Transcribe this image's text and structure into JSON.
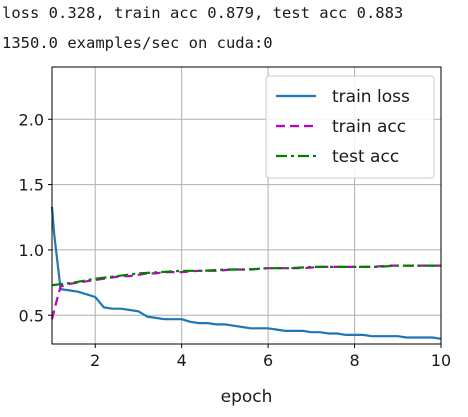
{
  "log": {
    "line1": "loss 0.328, train acc 0.879, test acc 0.883",
    "line2": "1350.0 examples/sec on cuda:0"
  },
  "chart_data": {
    "type": "line",
    "title": "",
    "xlabel": "epoch",
    "ylabel": "",
    "xlim": [
      1,
      10
    ],
    "ylim": [
      0.28,
      2.4
    ],
    "xticks": [
      2,
      4,
      6,
      8,
      10
    ],
    "yticks": [
      0.5,
      1.0,
      1.5,
      2.0
    ],
    "xtick_labels": [
      "2",
      "4",
      "6",
      "8",
      "10"
    ],
    "ytick_labels": [
      "0.5",
      "1.0",
      "1.5",
      "2.0"
    ],
    "grid": true,
    "legend_position": "top-right",
    "series": [
      {
        "name": "train loss",
        "color": "#1f77b4",
        "style": "solid",
        "x": [
          1.0,
          1.05,
          1.2,
          1.4,
          1.6,
          1.8,
          2.0,
          2.2,
          2.4,
          2.6,
          2.8,
          3.0,
          3.2,
          3.4,
          3.6,
          3.8,
          4.0,
          4.2,
          4.4,
          4.6,
          4.8,
          5.0,
          5.2,
          5.4,
          5.6,
          5.8,
          6.0,
          6.2,
          6.4,
          6.6,
          6.8,
          7.0,
          7.2,
          7.4,
          7.6,
          7.8,
          8.0,
          8.2,
          8.4,
          8.6,
          8.8,
          9.0,
          9.2,
          9.4,
          9.6,
          9.8,
          10.0
        ],
        "y": [
          1.33,
          1.12,
          0.7,
          0.69,
          0.68,
          0.66,
          0.64,
          0.56,
          0.55,
          0.55,
          0.54,
          0.53,
          0.49,
          0.48,
          0.47,
          0.47,
          0.47,
          0.45,
          0.44,
          0.44,
          0.43,
          0.43,
          0.42,
          0.41,
          0.4,
          0.4,
          0.4,
          0.39,
          0.38,
          0.38,
          0.38,
          0.37,
          0.37,
          0.36,
          0.36,
          0.35,
          0.35,
          0.35,
          0.34,
          0.34,
          0.34,
          0.34,
          0.33,
          0.33,
          0.33,
          0.33,
          0.32
        ]
      },
      {
        "name": "train acc",
        "color": "#bf00bf",
        "style": "dashed",
        "x": [
          1.0,
          1.1,
          1.2,
          1.4,
          1.6,
          1.8,
          2.0,
          2.2,
          2.4,
          2.6,
          2.8,
          3.0,
          3.2,
          3.4,
          3.6,
          3.8,
          4.0,
          4.4,
          4.8,
          5.2,
          5.6,
          6.0,
          6.4,
          6.8,
          7.2,
          7.6,
          8.0,
          8.4,
          8.8,
          9.2,
          9.6,
          10.0
        ],
        "y": [
          0.47,
          0.6,
          0.72,
          0.74,
          0.75,
          0.76,
          0.77,
          0.78,
          0.79,
          0.8,
          0.8,
          0.81,
          0.82,
          0.82,
          0.83,
          0.83,
          0.83,
          0.84,
          0.84,
          0.85,
          0.85,
          0.86,
          0.86,
          0.86,
          0.87,
          0.87,
          0.87,
          0.87,
          0.88,
          0.88,
          0.88,
          0.88
        ]
      },
      {
        "name": "test acc",
        "color": "#007f00",
        "style": "dashdot",
        "x": [
          1.0,
          1.5,
          2.0,
          2.5,
          3.0,
          3.5,
          4.0,
          4.5,
          5.0,
          5.5,
          6.0,
          6.5,
          7.0,
          7.5,
          8.0,
          8.5,
          9.0,
          9.5,
          10.0
        ],
        "y": [
          0.73,
          0.75,
          0.78,
          0.8,
          0.82,
          0.83,
          0.84,
          0.84,
          0.85,
          0.85,
          0.86,
          0.86,
          0.87,
          0.87,
          0.87,
          0.87,
          0.88,
          0.88,
          0.88
        ]
      }
    ]
  }
}
